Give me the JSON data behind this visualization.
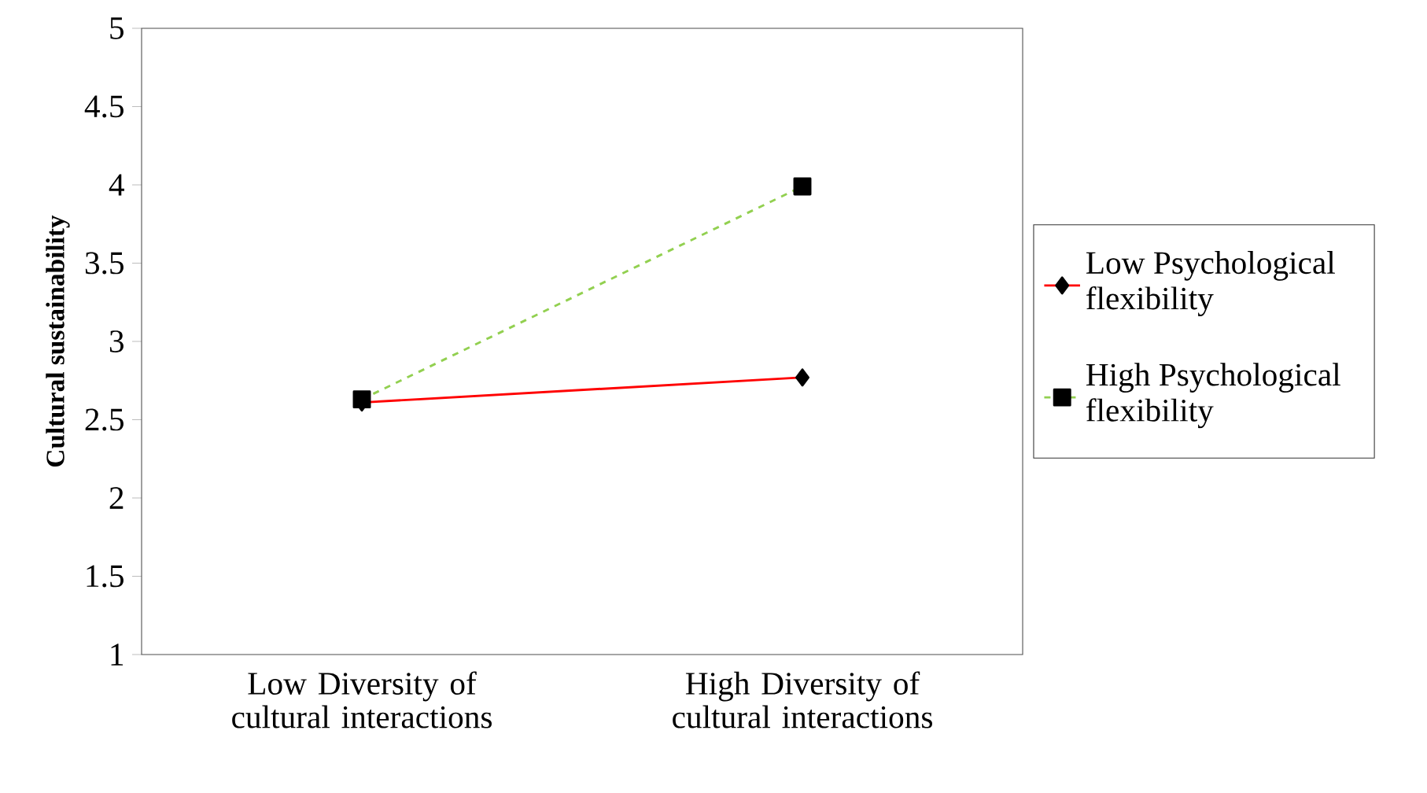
{
  "chart_data": {
    "type": "line",
    "ylabel": "Cultural sustainability",
    "categories": [
      "Low Diversity of cultural interactions",
      "High Diversity of cultural interactions"
    ],
    "series": [
      {
        "name": "Low Psychological flexibility",
        "color": "#ff0000",
        "values": [
          2.61,
          2.77
        ],
        "marker": "diamond",
        "line_style": "solid"
      },
      {
        "name": "High Psychological flexibility",
        "color": "#92d050",
        "values": [
          2.63,
          3.99
        ],
        "marker": "square",
        "line_style": "dashed"
      }
    ],
    "ylim": [
      1,
      5
    ],
    "yticks": [
      1,
      1.5,
      2,
      2.5,
      3,
      3.5,
      4,
      4.5,
      5
    ],
    "grid": false,
    "legend": "right"
  }
}
